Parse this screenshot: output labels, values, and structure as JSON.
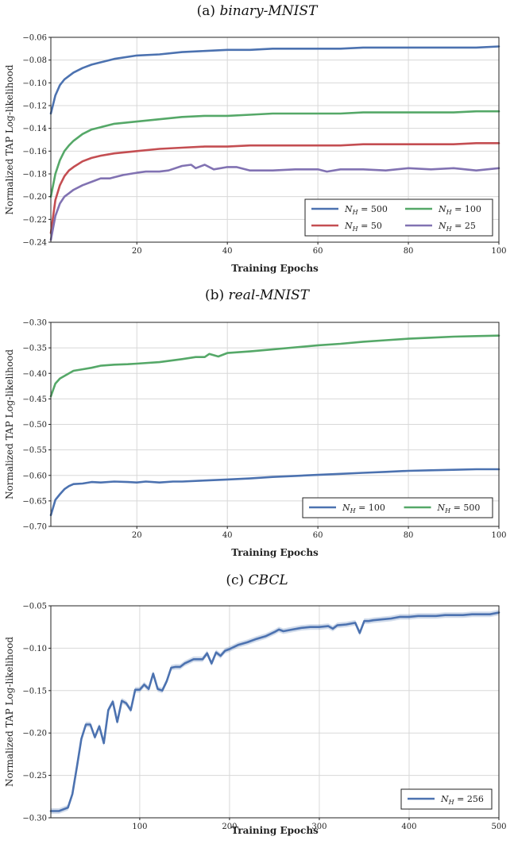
{
  "chart_data": [
    {
      "type": "line",
      "panel_label": "(a)",
      "title": "binary-MNIST",
      "xlabel": "Training Epochs",
      "ylabel": "Normalized TAP Log-likelihood",
      "xlim": [
        1,
        100
      ],
      "ylim": [
        -0.24,
        -0.06
      ],
      "xticks": [
        20,
        40,
        60,
        80,
        100
      ],
      "yticks": [
        -0.06,
        -0.08,
        -0.1,
        -0.12,
        -0.14,
        -0.16,
        -0.18,
        -0.2,
        -0.22,
        -0.24
      ],
      "ytick_labels": [
        "−0.06",
        "−0.08",
        "−0.10",
        "−0.12",
        "−0.14",
        "−0.16",
        "−0.18",
        "−0.20",
        "−0.22",
        "−0.24"
      ],
      "grid": true,
      "legend_position": "lower-right",
      "legend_columns": 2,
      "series": [
        {
          "name": "N_H = 500",
          "label_sub": "H",
          "label_val": "500",
          "color": "#4c72b0",
          "x": [
            1,
            2,
            3,
            4,
            5,
            6,
            8,
            10,
            12,
            15,
            20,
            25,
            30,
            35,
            40,
            45,
            50,
            55,
            60,
            65,
            70,
            75,
            80,
            85,
            90,
            95,
            100
          ],
          "values": [
            -0.127,
            -0.111,
            -0.102,
            -0.097,
            -0.094,
            -0.091,
            -0.087,
            -0.084,
            -0.082,
            -0.079,
            -0.076,
            -0.075,
            -0.073,
            -0.072,
            -0.071,
            -0.071,
            -0.07,
            -0.07,
            -0.07,
            -0.07,
            -0.069,
            -0.069,
            -0.069,
            -0.069,
            -0.069,
            -0.069,
            -0.068
          ]
        },
        {
          "name": "N_H = 100",
          "label_sub": "H",
          "label_val": "100",
          "color": "#55a868",
          "x": [
            1,
            2,
            3,
            4,
            5,
            6,
            8,
            10,
            12,
            15,
            20,
            25,
            30,
            35,
            40,
            45,
            50,
            55,
            60,
            65,
            70,
            75,
            80,
            85,
            90,
            95,
            100
          ],
          "values": [
            -0.2,
            -0.18,
            -0.168,
            -0.16,
            -0.155,
            -0.151,
            -0.145,
            -0.141,
            -0.139,
            -0.136,
            -0.134,
            -0.132,
            -0.13,
            -0.129,
            -0.129,
            -0.128,
            -0.127,
            -0.127,
            -0.127,
            -0.127,
            -0.126,
            -0.126,
            -0.126,
            -0.126,
            -0.126,
            -0.125,
            -0.125
          ]
        },
        {
          "name": "N_H = 50",
          "label_sub": "H",
          "label_val": "50",
          "color": "#c44e52",
          "x": [
            1,
            2,
            3,
            4,
            5,
            6,
            8,
            10,
            12,
            15,
            20,
            25,
            30,
            35,
            40,
            45,
            50,
            55,
            60,
            65,
            70,
            75,
            80,
            85,
            90,
            95,
            100
          ],
          "values": [
            -0.232,
            -0.203,
            -0.19,
            -0.182,
            -0.177,
            -0.174,
            -0.169,
            -0.166,
            -0.164,
            -0.162,
            -0.16,
            -0.158,
            -0.157,
            -0.156,
            -0.156,
            -0.155,
            -0.155,
            -0.155,
            -0.155,
            -0.155,
            -0.154,
            -0.154,
            -0.154,
            -0.154,
            -0.154,
            -0.153,
            -0.153
          ]
        },
        {
          "name": "N_H = 25",
          "label_sub": "H",
          "label_val": "25",
          "color": "#8172b2",
          "x": [
            1,
            2,
            3,
            4,
            5,
            6,
            8,
            10,
            12,
            14,
            15,
            17,
            20,
            22,
            25,
            27,
            30,
            32,
            33,
            35,
            37,
            40,
            42,
            45,
            50,
            55,
            60,
            62,
            65,
            70,
            75,
            80,
            85,
            90,
            95,
            100
          ],
          "values": [
            -0.238,
            -0.217,
            -0.206,
            -0.2,
            -0.197,
            -0.194,
            -0.19,
            -0.187,
            -0.184,
            -0.184,
            -0.183,
            -0.181,
            -0.179,
            -0.178,
            -0.178,
            -0.177,
            -0.173,
            -0.172,
            -0.175,
            -0.172,
            -0.176,
            -0.174,
            -0.174,
            -0.177,
            -0.177,
            -0.176,
            -0.176,
            -0.178,
            -0.176,
            -0.176,
            -0.177,
            -0.175,
            -0.176,
            -0.175,
            -0.177,
            -0.175
          ]
        }
      ]
    },
    {
      "type": "line",
      "panel_label": "(b)",
      "title": "real-MNIST",
      "xlabel": "Training Epochs",
      "ylabel": "Normalized TAP Log-likelihood",
      "xlim": [
        1,
        100
      ],
      "ylim": [
        -0.7,
        -0.3
      ],
      "xticks": [
        20,
        40,
        60,
        80,
        100
      ],
      "yticks": [
        -0.3,
        -0.35,
        -0.4,
        -0.45,
        -0.5,
        -0.55,
        -0.6,
        -0.65,
        -0.7
      ],
      "ytick_labels": [
        "−0.30",
        "−0.35",
        "−0.40",
        "−0.45",
        "−0.50",
        "−0.55",
        "−0.60",
        "−0.65",
        "−0.70"
      ],
      "grid": true,
      "legend_position": "lower-right",
      "legend_columns": 2,
      "series": [
        {
          "name": "N_H = 100",
          "label_sub": "H",
          "label_val": "100",
          "color": "#4c72b0",
          "x": [
            1,
            2,
            3,
            4,
            5,
            6,
            8,
            10,
            12,
            15,
            18,
            20,
            22,
            25,
            28,
            30,
            35,
            40,
            45,
            50,
            55,
            60,
            65,
            70,
            75,
            80,
            85,
            90,
            95,
            100
          ],
          "values": [
            -0.678,
            -0.648,
            -0.637,
            -0.627,
            -0.621,
            -0.617,
            -0.616,
            -0.613,
            -0.614,
            -0.612,
            -0.613,
            -0.614,
            -0.612,
            -0.614,
            -0.612,
            -0.612,
            -0.61,
            -0.608,
            -0.606,
            -0.603,
            -0.601,
            -0.599,
            -0.597,
            -0.595,
            -0.593,
            -0.591,
            -0.59,
            -0.589,
            -0.588,
            -0.588
          ]
        },
        {
          "name": "N_H = 500",
          "label_sub": "H",
          "label_val": "500",
          "color": "#55a868",
          "x": [
            1,
            2,
            3,
            4,
            5,
            6,
            8,
            10,
            12,
            15,
            18,
            20,
            25,
            30,
            33,
            35,
            36,
            38,
            40,
            45,
            50,
            55,
            60,
            65,
            70,
            75,
            80,
            85,
            90,
            95,
            100
          ],
          "values": [
            -0.445,
            -0.42,
            -0.41,
            -0.405,
            -0.4,
            -0.395,
            -0.392,
            -0.389,
            -0.385,
            -0.383,
            -0.382,
            -0.381,
            -0.378,
            -0.372,
            -0.368,
            -0.368,
            -0.362,
            -0.367,
            -0.36,
            -0.357,
            -0.353,
            -0.349,
            -0.345,
            -0.342,
            -0.338,
            -0.335,
            -0.332,
            -0.33,
            -0.328,
            -0.327,
            -0.326
          ]
        }
      ]
    },
    {
      "type": "line",
      "panel_label": "(c)",
      "title": "CBCL",
      "xlabel": "Training Epochs",
      "ylabel": "Normalized TAP Log-likelihood",
      "xlim": [
        1,
        500
      ],
      "ylim": [
        -0.3,
        -0.05
      ],
      "xticks": [
        100,
        200,
        300,
        400,
        500
      ],
      "yticks": [
        -0.05,
        -0.1,
        -0.15,
        -0.2,
        -0.25,
        -0.3
      ],
      "ytick_labels": [
        "−0.05",
        "−0.10",
        "−0.15",
        "−0.20",
        "−0.25",
        "−0.30"
      ],
      "grid": true,
      "legend_position": "lower-right",
      "legend_columns": 1,
      "band": true,
      "series": [
        {
          "name": "N_H = 256",
          "label_sub": "H",
          "label_val": "256",
          "color": "#4c72b0",
          "x": [
            1,
            10,
            20,
            25,
            30,
            35,
            40,
            45,
            50,
            55,
            60,
            65,
            70,
            75,
            80,
            85,
            90,
            95,
            100,
            105,
            110,
            115,
            120,
            125,
            130,
            135,
            140,
            145,
            150,
            160,
            170,
            175,
            180,
            185,
            190,
            195,
            200,
            210,
            220,
            230,
            240,
            250,
            255,
            260,
            270,
            280,
            290,
            300,
            310,
            315,
            320,
            330,
            340,
            345,
            350,
            355,
            360,
            370,
            380,
            390,
            400,
            410,
            420,
            430,
            440,
            450,
            460,
            470,
            480,
            490,
            500
          ],
          "values": [
            -0.292,
            -0.292,
            -0.288,
            -0.272,
            -0.24,
            -0.207,
            -0.19,
            -0.19,
            -0.205,
            -0.192,
            -0.212,
            -0.173,
            -0.163,
            -0.187,
            -0.162,
            -0.165,
            -0.173,
            -0.149,
            -0.149,
            -0.143,
            -0.148,
            -0.13,
            -0.148,
            -0.15,
            -0.139,
            -0.123,
            -0.122,
            -0.122,
            -0.118,
            -0.113,
            -0.113,
            -0.106,
            -0.118,
            -0.105,
            -0.109,
            -0.103,
            -0.101,
            -0.096,
            -0.093,
            -0.089,
            -0.086,
            -0.081,
            -0.078,
            -0.08,
            -0.078,
            -0.076,
            -0.075,
            -0.075,
            -0.074,
            -0.077,
            -0.073,
            -0.072,
            -0.07,
            -0.082,
            -0.068,
            -0.068,
            -0.067,
            -0.066,
            -0.065,
            -0.063,
            -0.063,
            -0.062,
            -0.062,
            -0.062,
            -0.061,
            -0.061,
            -0.061,
            -0.06,
            -0.06,
            -0.06,
            -0.058
          ]
        }
      ]
    }
  ]
}
